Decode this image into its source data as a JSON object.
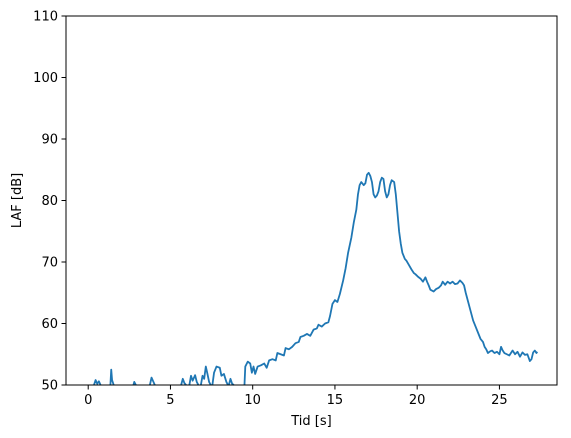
{
  "chart_data": {
    "type": "line",
    "title": "",
    "xlabel": "Tid [s]",
    "ylabel": "LAF [dB]",
    "xlim": [
      -1.35,
      28.5
    ],
    "ylim": [
      50,
      110
    ],
    "xticks": [
      0,
      5,
      10,
      15,
      20,
      25
    ],
    "yticks": [
      50,
      60,
      70,
      80,
      90,
      100,
      110
    ],
    "grid": false,
    "legend": "none",
    "series": [
      {
        "color": "#1f77b4",
        "segments": [
          [
            [
              0.35,
              50
            ],
            [
              0.45,
              50.8
            ],
            [
              0.55,
              50.2
            ],
            [
              0.65,
              50.6
            ],
            [
              0.75,
              50
            ]
          ],
          [
            [
              1.35,
              50
            ],
            [
              1.4,
              52.5
            ],
            [
              1.45,
              50.8
            ],
            [
              1.55,
              50
            ]
          ],
          [
            [
              2.75,
              50
            ],
            [
              2.8,
              50.5
            ],
            [
              2.9,
              50
            ]
          ],
          [
            [
              3.75,
              50
            ],
            [
              3.85,
              51.2
            ],
            [
              3.95,
              50.6
            ],
            [
              4.05,
              50
            ]
          ],
          [
            [
              5.65,
              50
            ],
            [
              5.75,
              51
            ],
            [
              5.85,
              50.3
            ],
            [
              5.95,
              50
            ]
          ],
          [
            [
              6.15,
              50
            ],
            [
              6.25,
              51.5
            ],
            [
              6.35,
              50.7
            ],
            [
              6.5,
              51.6
            ],
            [
              6.6,
              50.5
            ],
            [
              6.7,
              50
            ]
          ],
          [
            [
              6.85,
              50
            ],
            [
              6.95,
              51.5
            ],
            [
              7.05,
              51
            ],
            [
              7.15,
              53
            ],
            [
              7.25,
              51.8
            ],
            [
              7.35,
              50.5
            ],
            [
              7.45,
              50
            ]
          ],
          [
            [
              7.55,
              50
            ],
            [
              7.65,
              52
            ],
            [
              7.8,
              53
            ],
            [
              8,
              52.8
            ],
            [
              8.1,
              51.5
            ],
            [
              8.25,
              51.8
            ],
            [
              8.4,
              50.5
            ],
            [
              8.5,
              50
            ]
          ],
          [
            [
              8.55,
              50
            ],
            [
              8.65,
              51
            ],
            [
              8.75,
              50.2
            ],
            [
              8.85,
              50
            ]
          ],
          [
            [
              9.5,
              50
            ],
            [
              9.55,
              53
            ],
            [
              9.7,
              53.8
            ],
            [
              9.85,
              53.5
            ],
            [
              9.95,
              52
            ],
            [
              10.05,
              53
            ],
            [
              10.15,
              51.8
            ],
            [
              10.3,
              53
            ],
            [
              10.5,
              53.2
            ],
            [
              10.7,
              53.5
            ],
            [
              10.85,
              52.8
            ],
            [
              11,
              54
            ],
            [
              11.2,
              54.2
            ],
            [
              11.4,
              54
            ],
            [
              11.5,
              55.2
            ],
            [
              11.7,
              55
            ],
            [
              11.9,
              54.8
            ],
            [
              12,
              56
            ],
            [
              12.2,
              55.8
            ],
            [
              12.4,
              56.2
            ],
            [
              12.6,
              56.8
            ],
            [
              12.8,
              57
            ],
            [
              12.9,
              57.8
            ],
            [
              13.1,
              58
            ],
            [
              13.3,
              58.3
            ],
            [
              13.5,
              58
            ],
            [
              13.7,
              59
            ],
            [
              13.9,
              59.2
            ],
            [
              14,
              59.8
            ],
            [
              14.2,
              59.5
            ],
            [
              14.4,
              60
            ],
            [
              14.6,
              60.2
            ],
            [
              14.7,
              61.2
            ],
            [
              14.85,
              63.2
            ],
            [
              15,
              63.8
            ],
            [
              15.15,
              63.5
            ],
            [
              15.3,
              64.8
            ],
            [
              15.5,
              67
            ],
            [
              15.65,
              69
            ],
            [
              15.8,
              71.5
            ],
            [
              16,
              74
            ],
            [
              16.15,
              76.5
            ],
            [
              16.3,
              78.5
            ],
            [
              16.4,
              81
            ],
            [
              16.5,
              82.5
            ],
            [
              16.6,
              83
            ],
            [
              16.75,
              82.5
            ],
            [
              16.85,
              82.8
            ],
            [
              16.95,
              84.2
            ],
            [
              17.05,
              84.5
            ],
            [
              17.15,
              84
            ],
            [
              17.25,
              83
            ],
            [
              17.35,
              81
            ],
            [
              17.45,
              80.5
            ],
            [
              17.55,
              80.8
            ],
            [
              17.65,
              81.5
            ],
            [
              17.75,
              83
            ],
            [
              17.85,
              83.7
            ],
            [
              17.95,
              83.5
            ],
            [
              18.05,
              81.5
            ],
            [
              18.15,
              80.5
            ],
            [
              18.25,
              81
            ],
            [
              18.35,
              82.5
            ],
            [
              18.45,
              83.3
            ],
            [
              18.6,
              83
            ],
            [
              18.7,
              81
            ],
            [
              18.8,
              78
            ],
            [
              18.9,
              75
            ],
            [
              19,
              73
            ],
            [
              19.1,
              71.5
            ],
            [
              19.25,
              70.5
            ],
            [
              19.35,
              70.2
            ],
            [
              19.5,
              69.5
            ],
            [
              19.65,
              68.8
            ],
            [
              19.8,
              68.2
            ],
            [
              19.9,
              68
            ],
            [
              20.05,
              67.6
            ],
            [
              20.2,
              67.3
            ],
            [
              20.35,
              66.8
            ],
            [
              20.5,
              67.5
            ],
            [
              20.6,
              66.8
            ],
            [
              20.7,
              66.2
            ],
            [
              20.8,
              65.5
            ],
            [
              21,
              65.2
            ],
            [
              21.15,
              65.6
            ],
            [
              21.3,
              65.8
            ],
            [
              21.45,
              66.2
            ],
            [
              21.55,
              66.8
            ],
            [
              21.7,
              66.3
            ],
            [
              21.85,
              66.8
            ],
            [
              22,
              66.5
            ],
            [
              22.15,
              66.8
            ],
            [
              22.3,
              66.4
            ],
            [
              22.45,
              66.5
            ],
            [
              22.6,
              67
            ],
            [
              22.75,
              66.6
            ],
            [
              22.85,
              66.2
            ],
            [
              22.95,
              65
            ],
            [
              23.1,
              63.5
            ],
            [
              23.25,
              62
            ],
            [
              23.4,
              60.5
            ],
            [
              23.55,
              59.5
            ],
            [
              23.7,
              58.5
            ],
            [
              23.85,
              57.5
            ],
            [
              24,
              57
            ],
            [
              24.1,
              56.2
            ],
            [
              24.2,
              55.8
            ],
            [
              24.3,
              55.2
            ],
            [
              24.45,
              55.5
            ],
            [
              24.55,
              55.6
            ],
            [
              24.7,
              55.2
            ],
            [
              24.85,
              55.4
            ],
            [
              25,
              55
            ],
            [
              25.1,
              56.2
            ],
            [
              25.2,
              55.6
            ],
            [
              25.3,
              55.2
            ],
            [
              25.45,
              55
            ],
            [
              25.6,
              54.8
            ],
            [
              25.8,
              55.6
            ],
            [
              25.95,
              55
            ],
            [
              26.1,
              55.4
            ],
            [
              26.25,
              54.6
            ],
            [
              26.4,
              55.3
            ],
            [
              26.55,
              54.9
            ],
            [
              26.7,
              55
            ],
            [
              26.85,
              53.9
            ],
            [
              26.95,
              54.2
            ],
            [
              27.05,
              55.3
            ],
            [
              27.15,
              55.6
            ],
            [
              27.25,
              55.2
            ],
            [
              27.3,
              55.4
            ]
          ]
        ]
      }
    ]
  }
}
